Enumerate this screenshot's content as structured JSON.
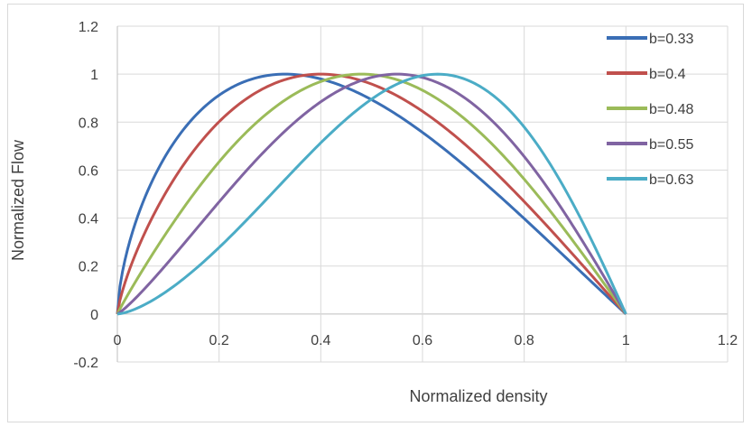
{
  "chart_data": {
    "type": "line",
    "title": "",
    "xlabel": "Normalized density",
    "ylabel": "Normalized Flow",
    "xlim": [
      0,
      1.2
    ],
    "ylim": [
      -0.2,
      1.2
    ],
    "x_ticks": [
      "0",
      "0.2",
      "0.4",
      "0.6",
      "0.8",
      "1",
      "1.2"
    ],
    "y_ticks": [
      "-0.2",
      "0",
      "0.2",
      "0.4",
      "0.6",
      "0.8",
      "1",
      "1.2"
    ],
    "grid": true,
    "legend_position": "right",
    "series": [
      {
        "name": "b=0.33",
        "b": 0.33,
        "color": "#3a6eb5"
      },
      {
        "name": "b=0.4",
        "b": 0.4,
        "color": "#c0504d"
      },
      {
        "name": "b=0.48",
        "b": 0.48,
        "color": "#9bbb59"
      },
      {
        "name": "b=0.55",
        "b": 0.55,
        "color": "#8064a2"
      },
      {
        "name": "b=0.63",
        "b": 0.63,
        "color": "#4bacc6"
      }
    ]
  }
}
